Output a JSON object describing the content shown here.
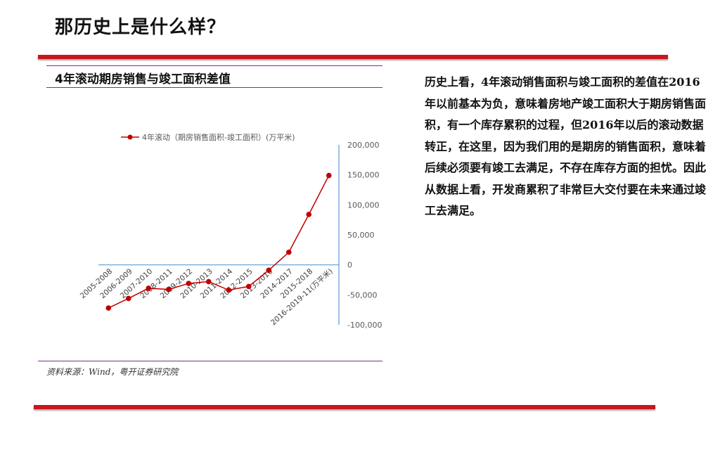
{
  "page": {
    "title": "那历史上是什么样？",
    "chart_heading": "4年滚动期房销售与竣工面积差值",
    "source": "资料来源：Wind，粤开证券研究院",
    "body_text": "历史上看，4年滚动销售面积与竣工面积的差值在2016年以前基本为负，意味着房地产竣工面积大于期房销售面积，有一个库存累积的过程，但2016年以后的滚动数据转正，在这里，因为我们用的是期房的销售面积，意味着后续必须要有竣工去满足，不存在库存方面的担忧。因此从数据上看，开发商累积了非常巨大交付要在未来通过竣工去满足。"
  },
  "colors": {
    "accent_red": "#c8161d",
    "series_red": "#c00000",
    "axis_blue": "#5b9bd5",
    "divider_purple": "#7b2f8f"
  },
  "chart_data": {
    "type": "line",
    "categories": [
      "2005-2008",
      "2006-2009",
      "2007-2010",
      "2008-2011",
      "2009-2012",
      "2010-2013",
      "2011-2014",
      "2012-2015",
      "2013-2016",
      "2014-2017",
      "2015-2018",
      "2016-2019-11(万平米)"
    ],
    "series": [
      {
        "name": "4年滚动（期房销售面积-竣工面积）(万平米)",
        "values": [
          -72000,
          -56000,
          -39000,
          -41000,
          -31000,
          -28000,
          -42000,
          -36000,
          -9000,
          21000,
          84000,
          149000
        ]
      }
    ],
    "y_ticks": [
      "200,000",
      "150,000",
      "100,000",
      "50,000",
      "0",
      "-50,000",
      "-100,000"
    ],
    "ylim": [
      -100000,
      200000
    ],
    "legend_position": "top",
    "y_axis_side": "right",
    "grid": false
  }
}
